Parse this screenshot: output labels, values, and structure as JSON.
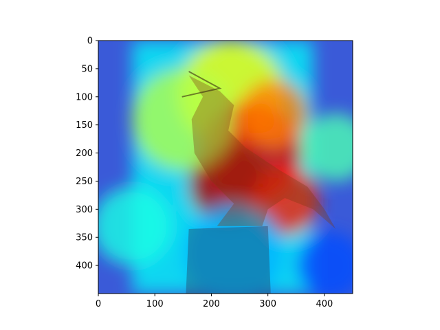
{
  "chart_data": {
    "type": "heatmap",
    "description_layer": "image overlaid with jet-colormap attention heatmap",
    "title": "",
    "xlabel": "",
    "ylabel": "",
    "xlim": [
      0,
      450
    ],
    "ylim": [
      450,
      0
    ],
    "y_inverted": true,
    "grid": false,
    "x_ticks": [
      0,
      100,
      200,
      300,
      400
    ],
    "y_ticks": [
      0,
      50,
      100,
      150,
      200,
      250,
      300,
      350,
      400
    ],
    "colormap": "jet",
    "colors": {
      "low": "#1a3cff",
      "mid_low": "#26d5ff",
      "mid": "#9bff5a",
      "mid_high": "#ffd21a",
      "high": "#e0201a"
    },
    "heat_regions": [
      {
        "x": 235,
        "y": 95,
        "r": 95,
        "level": 0.62
      },
      {
        "x": 270,
        "y": 200,
        "r": 90,
        "level": 0.9
      },
      {
        "x": 230,
        "y": 255,
        "r": 70,
        "level": 0.95
      },
      {
        "x": 330,
        "y": 285,
        "r": 60,
        "level": 0.85
      },
      {
        "x": 310,
        "y": 130,
        "r": 60,
        "level": 0.75
      },
      {
        "x": 150,
        "y": 140,
        "r": 90,
        "level": 0.55
      },
      {
        "x": 420,
        "y": 190,
        "r": 60,
        "level": 0.45
      },
      {
        "x": 60,
        "y": 330,
        "r": 70,
        "level": 0.4
      },
      {
        "x": 240,
        "y": 380,
        "r": 90,
        "level": 0.3
      },
      {
        "x": 410,
        "y": 400,
        "r": 60,
        "level": 0.2
      }
    ],
    "subject_outline": {
      "bird_body": [
        [
          160,
          62
        ],
        [
          215,
          90
        ],
        [
          240,
          115
        ],
        [
          230,
          160
        ],
        [
          260,
          190
        ],
        [
          320,
          230
        ],
        [
          370,
          260
        ],
        [
          400,
          300
        ],
        [
          420,
          335
        ],
        [
          380,
          300
        ],
        [
          330,
          280
        ],
        [
          300,
          300
        ],
        [
          290,
          330
        ],
        [
          210,
          330
        ],
        [
          240,
          290
        ],
        [
          200,
          250
        ],
        [
          170,
          200
        ],
        [
          165,
          140
        ],
        [
          185,
          100
        ]
      ],
      "post": [
        [
          160,
          335
        ],
        [
          300,
          330
        ],
        [
          305,
          450
        ],
        [
          155,
          450
        ]
      ]
    }
  }
}
